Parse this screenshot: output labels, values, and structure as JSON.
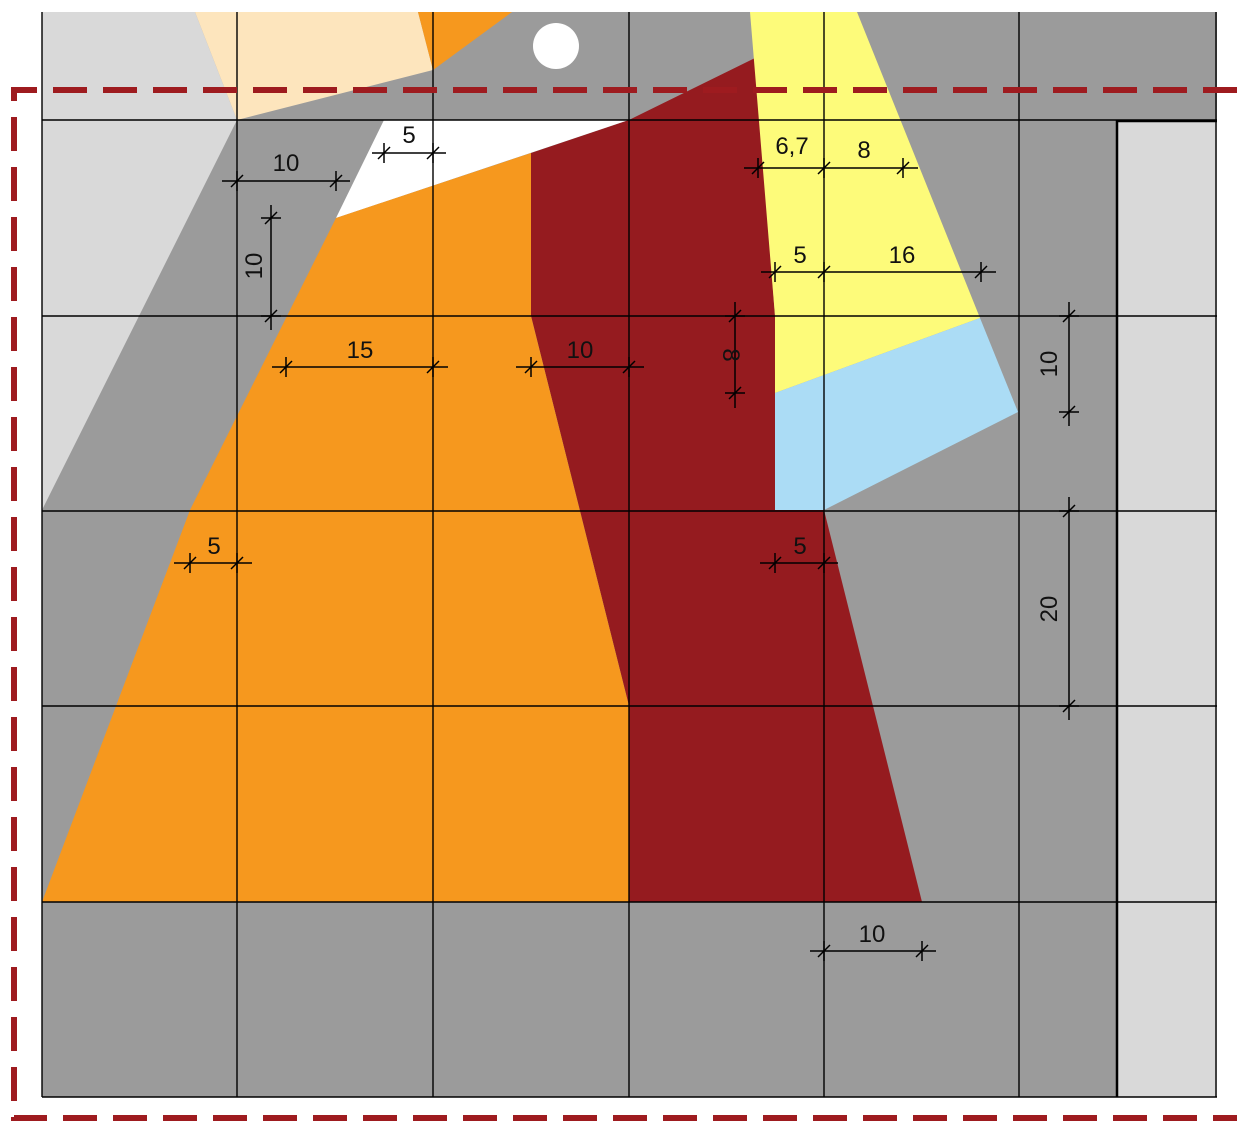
{
  "colors": {
    "background": "#ffffff",
    "panel_gray": "#9b9b9b",
    "light_gray": "#d9d9d9",
    "peach": "#fde5bd",
    "orange": "#f6981e",
    "dark_red": "#951b1f",
    "yellow": "#fdfb7a",
    "light_blue": "#abdcf5",
    "white_strip": "#ffffff",
    "dashed_border": "#9e1b1f",
    "grid_lines": "#000000"
  },
  "dimensions": [
    {
      "id": "dim-top-5",
      "label": "5"
    },
    {
      "id": "dim-10-upper-left",
      "label": "10"
    },
    {
      "id": "dim-vertical-10-left",
      "label": "10"
    },
    {
      "id": "dim-15",
      "label": "15"
    },
    {
      "id": "dim-10-mid",
      "label": "10"
    },
    {
      "id": "dim-vertical-8",
      "label": "8"
    },
    {
      "id": "dim-6-7",
      "label": "6,7"
    },
    {
      "id": "dim-8-top",
      "label": "8"
    },
    {
      "id": "dim-5-yellow",
      "label": "5"
    },
    {
      "id": "dim-16",
      "label": "16"
    },
    {
      "id": "dim-vertical-10-right",
      "label": "10"
    },
    {
      "id": "dim-5-left-mid",
      "label": "5"
    },
    {
      "id": "dim-5-right-mid",
      "label": "5"
    },
    {
      "id": "dim-vertical-20",
      "label": "20"
    },
    {
      "id": "dim-10-bottom",
      "label": "10"
    }
  ]
}
